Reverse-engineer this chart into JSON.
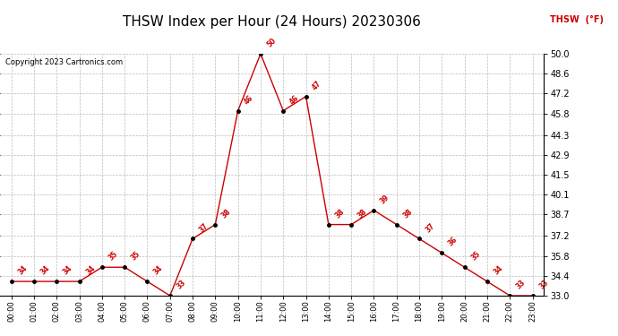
{
  "title": "THSW Index per Hour (24 Hours) 20230306",
  "copyright": "Copyright 2023 Cartronics.com",
  "legend_label": "THSW (°F)",
  "hours": [
    "00:00",
    "01:00",
    "02:00",
    "03:00",
    "04:00",
    "05:00",
    "06:00",
    "07:00",
    "08:00",
    "09:00",
    "10:00",
    "11:00",
    "12:00",
    "13:00",
    "14:00",
    "15:00",
    "16:00",
    "17:00",
    "18:00",
    "19:00",
    "20:00",
    "21:00",
    "22:00",
    "23:00"
  ],
  "values": [
    34,
    34,
    34,
    34,
    35,
    35,
    34,
    33,
    37,
    38,
    46,
    50,
    46,
    47,
    38,
    38,
    39,
    38,
    37,
    36,
    35,
    34,
    33,
    33
  ],
  "line_color": "#cc0000",
  "marker_color": "#000000",
  "label_color": "#cc0000",
  "ylim_min": 33.0,
  "ylim_max": 50.0,
  "yticks": [
    33.0,
    34.4,
    35.8,
    37.2,
    38.7,
    40.1,
    41.5,
    42.9,
    44.3,
    45.8,
    47.2,
    48.6,
    50.0
  ],
  "background_color": "#ffffff",
  "grid_color": "#bbbbbb",
  "title_fontsize": 11,
  "axis_label_fontsize": 6,
  "data_label_fontsize": 5.5,
  "copyright_fontsize": 6,
  "legend_fontsize": 7
}
